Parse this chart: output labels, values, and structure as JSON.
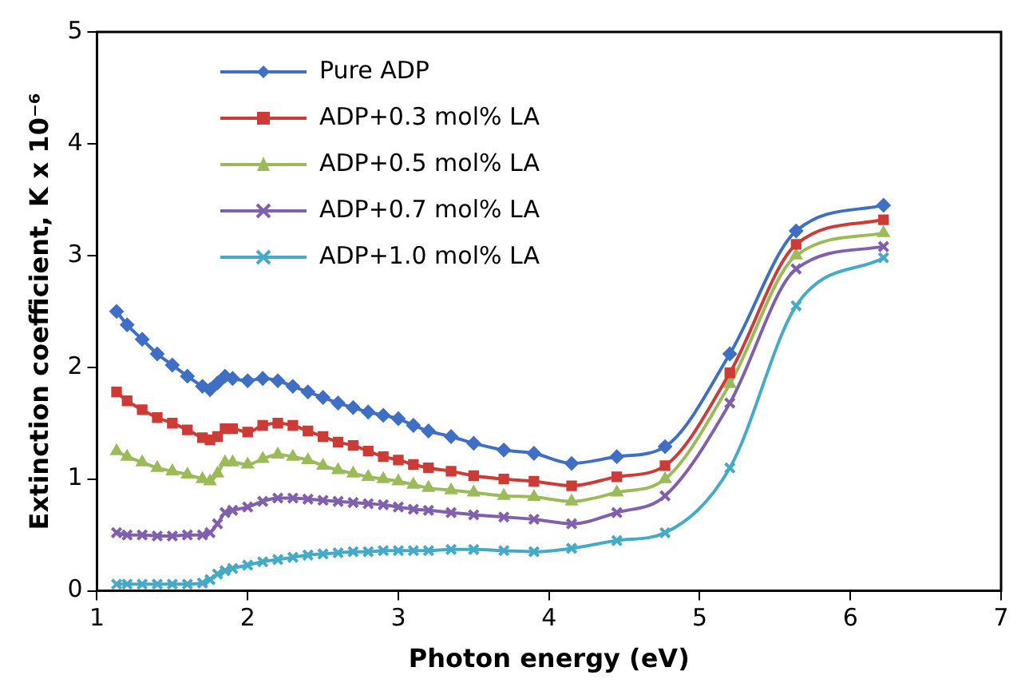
{
  "chart_data": {
    "type": "line",
    "xlabel": "Photon energy (eV)",
    "ylabel": "Extinction coefficient, K x 10⁻⁶",
    "x": [
      1.13,
      1.2,
      1.3,
      1.4,
      1.5,
      1.6,
      1.7,
      1.75,
      1.8,
      1.85,
      1.9,
      2.0,
      2.1,
      2.2,
      2.3,
      2.4,
      2.5,
      2.6,
      2.7,
      2.8,
      2.9,
      3.0,
      3.1,
      3.2,
      3.35,
      3.5,
      3.7,
      3.9,
      4.15,
      4.45,
      4.77,
      5.2,
      5.64,
      6.22
    ],
    "series": [
      {
        "name": "Pure ADP",
        "color": "#3f6fc4",
        "marker": "diamond",
        "values": [
          2.5,
          2.38,
          2.25,
          2.12,
          2.02,
          1.92,
          1.83,
          1.8,
          1.86,
          1.92,
          1.9,
          1.88,
          1.9,
          1.88,
          1.83,
          1.78,
          1.73,
          1.68,
          1.64,
          1.6,
          1.57,
          1.54,
          1.48,
          1.43,
          1.38,
          1.32,
          1.26,
          1.23,
          1.14,
          1.2,
          1.29,
          2.12,
          3.22,
          3.45
        ]
      },
      {
        "name": "ADP+0.3 mol% LA",
        "color": "#cc3b36",
        "marker": "square",
        "values": [
          1.78,
          1.7,
          1.62,
          1.55,
          1.5,
          1.44,
          1.37,
          1.35,
          1.38,
          1.45,
          1.45,
          1.42,
          1.48,
          1.5,
          1.48,
          1.43,
          1.38,
          1.33,
          1.3,
          1.25,
          1.2,
          1.17,
          1.13,
          1.1,
          1.07,
          1.03,
          1.0,
          0.98,
          0.94,
          1.02,
          1.12,
          1.95,
          3.1,
          3.32
        ]
      },
      {
        "name": "ADP+0.5 mol% LA",
        "color": "#9bbb59",
        "marker": "triangle",
        "values": [
          1.25,
          1.2,
          1.15,
          1.1,
          1.07,
          1.04,
          1.0,
          0.98,
          1.05,
          1.15,
          1.15,
          1.13,
          1.18,
          1.22,
          1.2,
          1.17,
          1.12,
          1.08,
          1.05,
          1.02,
          1.0,
          0.98,
          0.95,
          0.92,
          0.9,
          0.88,
          0.85,
          0.84,
          0.8,
          0.88,
          1.0,
          1.85,
          3.0,
          3.2
        ]
      },
      {
        "name": "ADP+0.7 mol% LA",
        "color": "#7f5fae",
        "marker": "cross",
        "values": [
          0.52,
          0.5,
          0.5,
          0.49,
          0.49,
          0.5,
          0.5,
          0.52,
          0.6,
          0.7,
          0.72,
          0.75,
          0.8,
          0.83,
          0.83,
          0.82,
          0.81,
          0.8,
          0.79,
          0.78,
          0.77,
          0.75,
          0.73,
          0.72,
          0.7,
          0.68,
          0.66,
          0.64,
          0.6,
          0.7,
          0.85,
          1.68,
          2.88,
          3.08
        ]
      },
      {
        "name": "ADP+1.0 mol% LA",
        "color": "#45a9c8",
        "marker": "cross",
        "values": [
          0.06,
          0.06,
          0.06,
          0.06,
          0.06,
          0.06,
          0.07,
          0.1,
          0.15,
          0.18,
          0.2,
          0.23,
          0.26,
          0.28,
          0.3,
          0.32,
          0.33,
          0.34,
          0.35,
          0.35,
          0.36,
          0.36,
          0.36,
          0.36,
          0.37,
          0.37,
          0.36,
          0.35,
          0.38,
          0.45,
          0.52,
          1.1,
          2.55,
          2.98
        ]
      }
    ],
    "xlim": [
      1,
      7
    ],
    "xticks": [
      1,
      2,
      3,
      4,
      5,
      6,
      7
    ],
    "ylim": [
      0,
      5
    ],
    "yticks": [
      0,
      1,
      2,
      3,
      4,
      5
    ],
    "grid": false,
    "legend": "top left",
    "line_style": "solid"
  }
}
